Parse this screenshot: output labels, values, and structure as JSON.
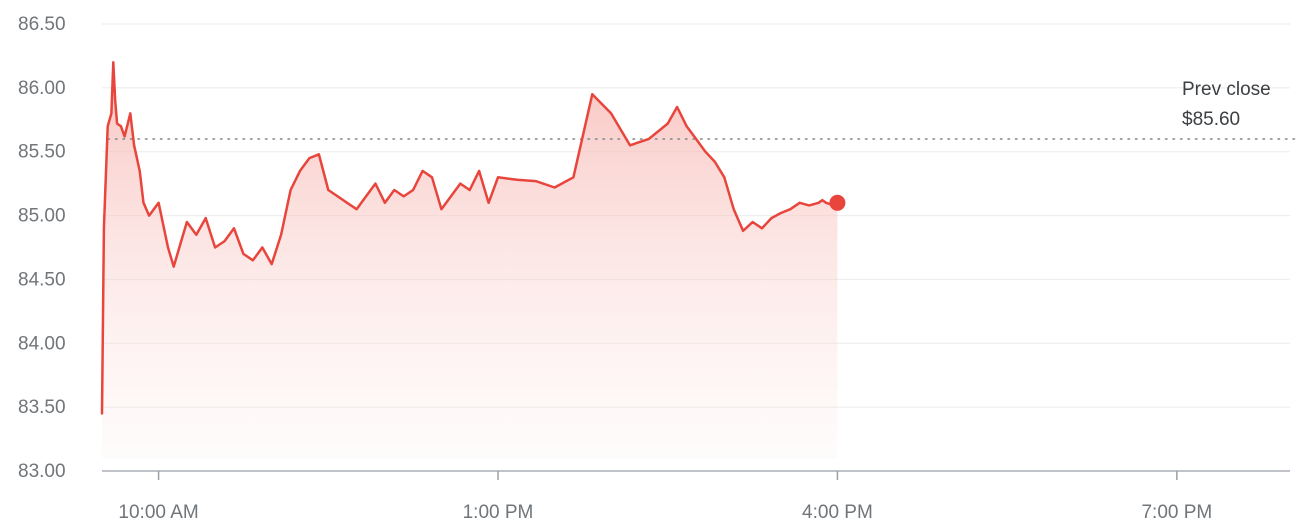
{
  "chart_data": {
    "type": "line",
    "title": "",
    "xlabel": "",
    "ylabel": "",
    "ylim": [
      83.0,
      86.5
    ],
    "xlim": [
      "9:30 AM",
      "8:00 PM"
    ],
    "y_ticks": [
      "86.50",
      "86.00",
      "85.50",
      "85.00",
      "84.50",
      "84.00",
      "83.50",
      "83.00"
    ],
    "y_tick_values": [
      86.5,
      86.0,
      85.5,
      85.0,
      84.5,
      84.0,
      83.5,
      83.0
    ],
    "x_ticks": [
      "10:00 AM",
      "1:00 PM",
      "4:00 PM",
      "7:00 PM"
    ],
    "grid": true,
    "reference_line": {
      "label": "Prev close",
      "value_label": "$85.60",
      "value": 85.6
    },
    "colors": {
      "line": "#e8453c",
      "fill_top": "#f6b0ab",
      "grid": "#ebebeb",
      "axis": "#9aa0a6",
      "ref": "#80868b"
    },
    "series": [
      {
        "x": [
          "9:30 AM",
          "9:31 AM",
          "9:33 AM",
          "9:35 AM",
          "9:36 AM",
          "9:37 AM",
          "9:38 AM",
          "9:40 AM",
          "9:42 AM",
          "9:45 AM",
          "9:47 AM",
          "9:50 AM",
          "9:52 AM",
          "9:55 AM",
          "10:00 AM",
          "10:05 AM",
          "10:08 AM",
          "10:12 AM",
          "10:15 AM",
          "10:20 AM",
          "10:25 AM",
          "10:30 AM",
          "10:35 AM",
          "10:40 AM",
          "10:45 AM",
          "10:50 AM",
          "10:55 AM",
          "11:00 AM",
          "11:05 AM",
          "11:10 AM",
          "11:15 AM",
          "11:20 AM",
          "11:25 AM",
          "11:30 AM",
          "11:35 AM",
          "11:40 AM",
          "11:45 AM",
          "11:50 AM",
          "11:55 AM",
          "12:00 PM",
          "12:05 PM",
          "12:10 PM",
          "12:15 PM",
          "12:20 PM",
          "12:25 PM",
          "12:30 PM",
          "12:35 PM",
          "12:40 PM",
          "12:45 PM",
          "12:50 PM",
          "12:55 PM",
          "1:00 PM",
          "1:10 PM",
          "1:20 PM",
          "1:30 PM",
          "1:40 PM",
          "1:50 PM",
          "2:00 PM",
          "2:10 PM",
          "2:20 PM",
          "2:30 PM",
          "2:35 PM",
          "2:40 PM",
          "2:45 PM",
          "2:50 PM",
          "2:55 PM",
          "3:00 PM",
          "3:05 PM",
          "3:10 PM",
          "3:15 PM",
          "3:20 PM",
          "3:25 PM",
          "3:30 PM",
          "3:35 PM",
          "3:40 PM",
          "3:45 PM",
          "3:50 PM",
          "3:52 PM",
          "3:54 PM",
          "3:56 PM",
          "3:58 PM",
          "4:00 PM"
        ],
        "values": [
          83.45,
          84.9,
          85.7,
          85.8,
          86.2,
          85.9,
          85.72,
          85.7,
          85.62,
          85.8,
          85.55,
          85.35,
          85.1,
          85.0,
          85.1,
          84.75,
          84.6,
          84.8,
          84.95,
          84.85,
          84.98,
          84.75,
          84.8,
          84.9,
          84.7,
          84.65,
          84.75,
          84.62,
          84.85,
          85.2,
          85.35,
          85.45,
          85.48,
          85.2,
          85.15,
          85.1,
          85.05,
          85.15,
          85.25,
          85.1,
          85.2,
          85.15,
          85.2,
          85.35,
          85.3,
          85.05,
          85.15,
          85.25,
          85.2,
          85.35,
          85.1,
          85.3,
          85.28,
          85.27,
          85.22,
          85.3,
          85.95,
          85.8,
          85.55,
          85.6,
          85.72,
          85.85,
          85.7,
          85.6,
          85.5,
          85.42,
          85.3,
          85.05,
          84.88,
          84.95,
          84.9,
          84.98,
          85.02,
          85.05,
          85.1,
          85.08,
          85.1,
          85.12,
          85.1,
          85.09,
          85.1,
          85.1
        ]
      }
    ]
  }
}
